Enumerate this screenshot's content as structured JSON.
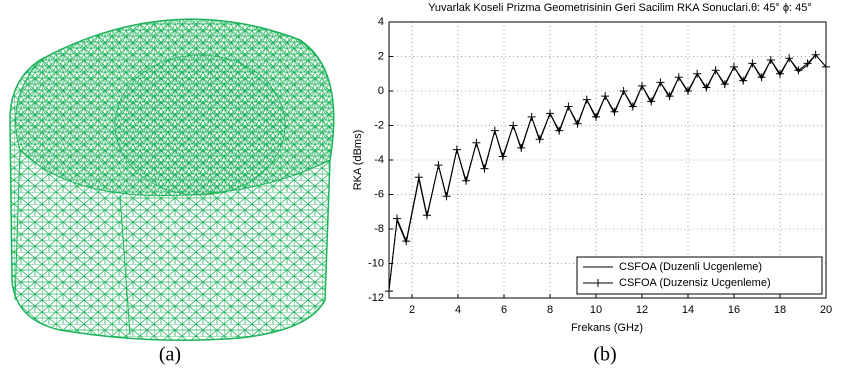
{
  "chart_data": {
    "type": "line",
    "title": "Yuvarlak Koseli Prizma Geometrisinin Geri Sacilim RKA Sonuclari.θ: 45° ϕ: 45°",
    "x_label": "Frekans (GHz)",
    "y_label": "RKA (dBms)",
    "x": [
      1.0,
      1.35,
      1.75,
      2.3,
      2.65,
      3.15,
      3.5,
      3.95,
      4.35,
      4.8,
      5.15,
      5.6,
      5.95,
      6.4,
      6.75,
      7.2,
      7.55,
      8.0,
      8.4,
      8.8,
      9.2,
      9.6,
      10.0,
      10.4,
      10.8,
      11.2,
      11.6,
      12.0,
      12.4,
      12.8,
      13.2,
      13.6,
      14.0,
      14.4,
      14.8,
      15.2,
      15.6,
      16.0,
      16.4,
      16.8,
      17.2,
      17.6,
      18.0,
      18.4,
      18.8,
      19.2,
      19.55,
      20.0
    ],
    "series": [
      {
        "name": "CSFOA (Duzenli Ucgenleme)",
        "color": "#000000",
        "marker": "none",
        "values": [
          -11.5,
          -7.5,
          -8.8,
          -5.1,
          -7.3,
          -4.3,
          -6.2,
          -3.4,
          -5.3,
          -3.0,
          -4.6,
          -2.3,
          -3.9,
          -2.0,
          -3.4,
          -1.5,
          -2.9,
          -1.3,
          -2.4,
          -0.9,
          -2.0,
          -0.5,
          -1.6,
          -0.3,
          -1.3,
          0.0,
          -1.0,
          0.3,
          -0.7,
          0.5,
          -0.4,
          0.8,
          -0.1,
          1.0,
          0.1,
          1.2,
          0.3,
          1.4,
          0.5,
          1.6,
          0.7,
          1.8,
          0.9,
          1.9,
          1.1,
          1.5,
          2.1,
          1.4
        ]
      },
      {
        "name": "CSFOA (Duzensiz Ucgenleme)",
        "color": "#000000",
        "marker": "plus",
        "values": [
          -11.6,
          -7.4,
          -8.7,
          -5.0,
          -7.2,
          -4.3,
          -6.1,
          -3.4,
          -5.2,
          -3.0,
          -4.5,
          -2.3,
          -3.8,
          -2.0,
          -3.3,
          -1.5,
          -2.8,
          -1.3,
          -2.3,
          -0.9,
          -1.9,
          -0.5,
          -1.5,
          -0.3,
          -1.2,
          0.0,
          -0.9,
          0.3,
          -0.6,
          0.5,
          -0.3,
          0.8,
          0.0,
          1.0,
          0.2,
          1.2,
          0.4,
          1.4,
          0.6,
          1.6,
          0.8,
          1.8,
          1.0,
          1.9,
          1.2,
          1.6,
          2.1,
          1.4
        ]
      }
    ],
    "xlim": [
      1,
      20
    ],
    "xticks": [
      2,
      4,
      6,
      8,
      10,
      12,
      14,
      16,
      18,
      20
    ],
    "ylim": [
      -12,
      4
    ],
    "yticks": [
      -12,
      -10,
      -8,
      -6,
      -4,
      -2,
      0,
      2,
      4
    ],
    "grid": true,
    "legend": "lower right"
  },
  "panel_labels": [
    "(a)",
    "(b)"
  ]
}
